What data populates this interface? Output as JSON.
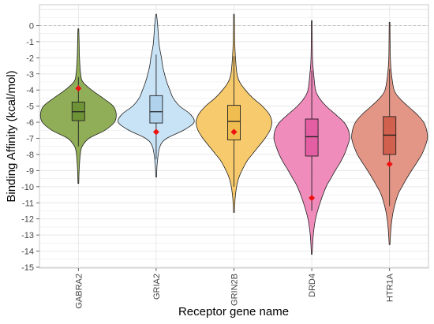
{
  "chart_data": {
    "type": "violin",
    "title": "",
    "xlabel": "Receptor gene name",
    "ylabel": "Binding Affinity (kcal/mol)",
    "ylim": [
      -15,
      1
    ],
    "yticks": [
      0,
      -1,
      -2,
      -3,
      -4,
      -5,
      -6,
      -7,
      -8,
      -9,
      -10,
      -11,
      -12,
      -13,
      -14,
      -15
    ],
    "reference_line": 0,
    "grid": true,
    "legend": "none",
    "categories": [
      "GABRA2",
      "GRIA2",
      "GRIN2B",
      "DRD4",
      "HTR1A"
    ],
    "series": [
      {
        "category": "GABRA2",
        "color": "#8aaa4e",
        "box_color": "#6e9236",
        "min": -9.8,
        "max": -0.2,
        "q1": -5.9,
        "median": -5.35,
        "q3": -4.75,
        "whisker_low": -7.5,
        "whisker_high": -3.2,
        "highlight": -3.9,
        "density": [
          [
            -9.8,
            0.01
          ],
          [
            -9.0,
            0.02
          ],
          [
            -8.0,
            0.05
          ],
          [
            -7.5,
            0.1
          ],
          [
            -7.0,
            0.28
          ],
          [
            -6.5,
            0.7
          ],
          [
            -6.0,
            0.95
          ],
          [
            -5.5,
            1.0
          ],
          [
            -5.0,
            0.92
          ],
          [
            -4.5,
            0.65
          ],
          [
            -4.0,
            0.35
          ],
          [
            -3.5,
            0.12
          ],
          [
            -3.0,
            0.06
          ],
          [
            -2.0,
            0.03
          ],
          [
            -1.0,
            0.02
          ],
          [
            -0.2,
            0.01
          ]
        ]
      },
      {
        "category": "GRIA2",
        "color": "#c6e2f5",
        "box_color": "#b0d2ec",
        "min": -9.4,
        "max": 0.7,
        "q1": -6.05,
        "median": -5.35,
        "q3": -4.35,
        "whisker_low": -8.3,
        "whisker_high": -1.8,
        "highlight": -6.6,
        "density": [
          [
            -9.4,
            0.01
          ],
          [
            -8.5,
            0.03
          ],
          [
            -7.5,
            0.1
          ],
          [
            -7.0,
            0.28
          ],
          [
            -6.5,
            0.72
          ],
          [
            -6.0,
            1.0
          ],
          [
            -5.5,
            0.9
          ],
          [
            -5.0,
            0.62
          ],
          [
            -4.5,
            0.45
          ],
          [
            -4.0,
            0.36
          ],
          [
            -3.5,
            0.28
          ],
          [
            -3.0,
            0.22
          ],
          [
            -2.5,
            0.17
          ],
          [
            -2.0,
            0.14
          ],
          [
            -1.5,
            0.1
          ],
          [
            -1.0,
            0.07
          ],
          [
            0.0,
            0.04
          ],
          [
            0.7,
            0.01
          ]
        ]
      },
      {
        "category": "GRIN2B",
        "color": "#f5c765",
        "box_color": "#f0bd50",
        "min": -11.6,
        "max": 0.7,
        "q1": -7.1,
        "median": -5.95,
        "q3": -4.95,
        "whisker_low": -10.0,
        "whisker_high": -1.9,
        "highlight": -6.6,
        "density": [
          [
            -11.6,
            0.01
          ],
          [
            -10.5,
            0.04
          ],
          [
            -9.5,
            0.12
          ],
          [
            -8.5,
            0.32
          ],
          [
            -8.0,
            0.48
          ],
          [
            -7.5,
            0.65
          ],
          [
            -7.0,
            0.82
          ],
          [
            -6.5,
            0.95
          ],
          [
            -6.0,
            1.0
          ],
          [
            -5.5,
            0.93
          ],
          [
            -5.0,
            0.75
          ],
          [
            -4.5,
            0.5
          ],
          [
            -4.0,
            0.3
          ],
          [
            -3.5,
            0.15
          ],
          [
            -3.0,
            0.08
          ],
          [
            -2.0,
            0.04
          ],
          [
            -1.0,
            0.02
          ],
          [
            0.7,
            0.01
          ]
        ]
      },
      {
        "category": "DRD4",
        "color": "#ef86b8",
        "box_color": "#e35ea3",
        "min": -14.2,
        "max": 0.3,
        "q1": -8.1,
        "median": -6.9,
        "q3": -5.8,
        "whisker_low": -11.5,
        "whisker_high": -2.8,
        "highlight": -10.7,
        "density": [
          [
            -14.2,
            0.01
          ],
          [
            -13.0,
            0.04
          ],
          [
            -12.0,
            0.1
          ],
          [
            -11.0,
            0.22
          ],
          [
            -10.0,
            0.38
          ],
          [
            -9.5,
            0.5
          ],
          [
            -9.0,
            0.62
          ],
          [
            -8.5,
            0.75
          ],
          [
            -8.0,
            0.86
          ],
          [
            -7.5,
            0.94
          ],
          [
            -7.0,
            1.0
          ],
          [
            -6.5,
            0.97
          ],
          [
            -6.0,
            0.85
          ],
          [
            -5.5,
            0.62
          ],
          [
            -5.0,
            0.38
          ],
          [
            -4.5,
            0.2
          ],
          [
            -4.0,
            0.1
          ],
          [
            -3.0,
            0.05
          ],
          [
            -2.0,
            0.02
          ],
          [
            0.3,
            0.01
          ]
        ]
      },
      {
        "category": "HTR1A",
        "color": "#e2907f",
        "box_color": "#d2604e",
        "min": -13.6,
        "max": 0.2,
        "q1": -8.0,
        "median": -6.8,
        "q3": -5.65,
        "whisker_low": -11.2,
        "whisker_high": -2.7,
        "highlight": -8.6,
        "density": [
          [
            -13.6,
            0.01
          ],
          [
            -12.5,
            0.04
          ],
          [
            -11.5,
            0.1
          ],
          [
            -10.5,
            0.22
          ],
          [
            -10.0,
            0.33
          ],
          [
            -9.5,
            0.45
          ],
          [
            -9.0,
            0.58
          ],
          [
            -8.5,
            0.72
          ],
          [
            -8.0,
            0.85
          ],
          [
            -7.5,
            0.94
          ],
          [
            -7.0,
            1.0
          ],
          [
            -6.5,
            0.98
          ],
          [
            -6.0,
            0.9
          ],
          [
            -5.5,
            0.72
          ],
          [
            -5.0,
            0.48
          ],
          [
            -4.5,
            0.26
          ],
          [
            -4.0,
            0.12
          ],
          [
            -3.0,
            0.05
          ],
          [
            -2.0,
            0.02
          ],
          [
            0.2,
            0.01
          ]
        ]
      }
    ],
    "colors": {
      "highlight_marker": "#ee1111",
      "outline": "#222222",
      "grid": "#e6e6e6",
      "reference_line": "#bbbbbb"
    }
  }
}
